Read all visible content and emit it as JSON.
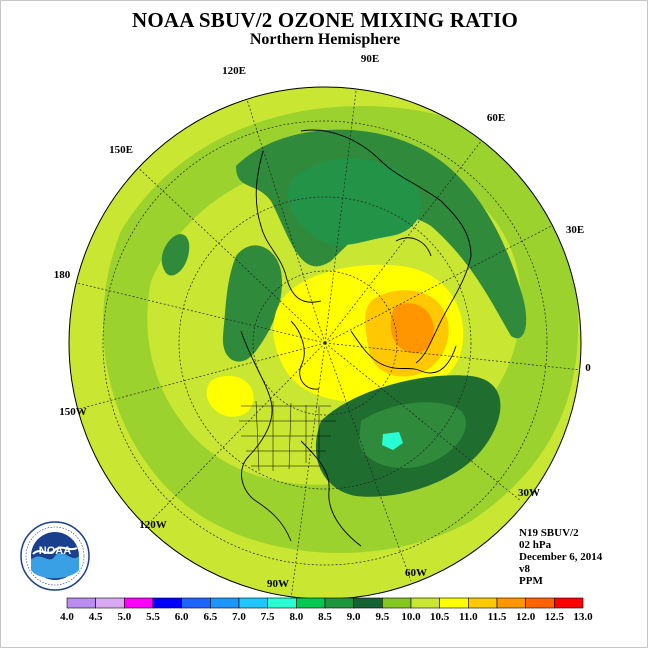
{
  "header": {
    "title": "NOAA SBUV/2 OZONE MIXING RATIO",
    "subtitle": "Northern Hemisphere"
  },
  "map": {
    "projection": "north polar stereographic",
    "longitude_labels": [
      "90E",
      "60E",
      "30E",
      "0",
      "30W",
      "60W",
      "90W",
      "120W",
      "150W",
      "180",
      "150E",
      "120E"
    ],
    "ring_colors": {
      "outer": "#c8e632",
      "mid": "#9bd22d",
      "dark": "#2f8a3c",
      "darker": "#1f6e30"
    }
  },
  "info": {
    "satellite": "N19 SBUV/2",
    "level": "02 hPa",
    "date": "December 6, 2014",
    "version": "v8",
    "units": "PPM"
  },
  "logo": {
    "name": "noaa-logo",
    "text": "NOAA"
  },
  "colorbar": {
    "ticks": [
      "4.0",
      "4.5",
      "5.0",
      "5.5",
      "6.0",
      "6.5",
      "7.0",
      "7.5",
      "8.0",
      "8.5",
      "9.0",
      "9.5",
      "10.0",
      "10.5",
      "11.0",
      "11.5",
      "12.0",
      "12.5",
      "13.0"
    ],
    "colors": [
      "#b98cf0",
      "#d8a8f0",
      "#ff00ff",
      "#0000ff",
      "#1e64ff",
      "#1e96ff",
      "#1ec8ff",
      "#28ffd2",
      "#00c850",
      "#1e963c",
      "#146432",
      "#82c81e",
      "#c8e632",
      "#ffff00",
      "#ffc800",
      "#ff9600",
      "#ff6400",
      "#ff0000",
      "#8c5a3c"
    ]
  }
}
